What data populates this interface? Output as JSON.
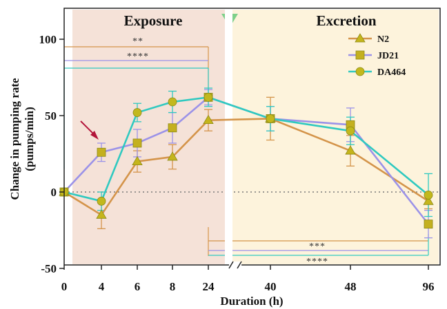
{
  "chart_data": {
    "type": "line",
    "phases": [
      "Exposure",
      "Excretion"
    ],
    "xlabel": "Duration (h)",
    "ylabel_line1": "Change in pumping rate",
    "ylabel_line2": "(pumps/min)",
    "x": [
      "0",
      "4",
      "6",
      "8",
      "24",
      "40",
      "48",
      "96"
    ],
    "yticks": [
      "100",
      "50",
      "0",
      "-50"
    ],
    "ylim": [
      -50,
      100
    ],
    "axis_break": "between 24 and 40",
    "reference_line_y": 0,
    "legend_position": "top-right",
    "series": [
      {
        "name": "N2",
        "color": "#d4944a",
        "marker_color": "#c5b51c",
        "marker": "triangle",
        "values": [
          0,
          -15,
          20,
          23,
          47,
          48,
          27,
          -6
        ],
        "errors": [
          0,
          9,
          7,
          8,
          7,
          14,
          10,
          5
        ]
      },
      {
        "name": "JD21",
        "color": "#9b92e8",
        "marker_color": "#c4b01f",
        "marker": "square",
        "values": [
          0,
          26,
          32,
          42,
          62,
          48,
          44,
          -21
        ],
        "errors": [
          0,
          6,
          9,
          10,
          5,
          8,
          11,
          9
        ]
      },
      {
        "name": "DA464",
        "color": "#2fc9c0",
        "marker_color": "#c2b81d",
        "marker": "circle",
        "values": [
          0,
          -6,
          52,
          59,
          62,
          48,
          40,
          -2
        ],
        "errors": [
          0,
          6,
          6,
          7,
          6,
          8,
          9,
          14
        ]
      }
    ],
    "significance": [
      {
        "label": "**",
        "color": "#d4944a"
      },
      {
        "label": "****",
        "color": "#9b92e8"
      },
      {
        "label": "***",
        "color": "#d4944a"
      },
      {
        "label": "****",
        "color": "#2fc9c0"
      }
    ],
    "colors": {
      "exposure_band": "#f5e2d8",
      "excretion_band": "#fdf3dc",
      "marker_triangle": "#3fbe6a",
      "arrow": "#b3143a"
    }
  }
}
